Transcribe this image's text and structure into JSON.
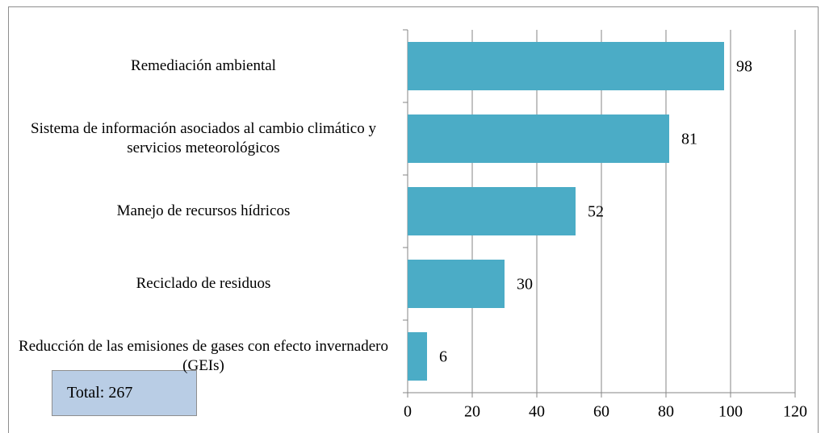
{
  "chart_data": {
    "type": "bar",
    "orientation": "horizontal",
    "categories": [
      "Remediación ambiental",
      "Sistema de información asociados al cambio climático y servicios meteorológicos",
      "Manejo de recursos hídricos",
      "Reciclado de residuos",
      "Reducción de las emisiones de gases con efecto invernadero (GEIs)"
    ],
    "values": [
      98,
      81,
      52,
      30,
      6
    ],
    "color": "#4bacc6",
    "xlim": [
      0,
      120
    ],
    "xticks": [
      0,
      20,
      40,
      60,
      80,
      100,
      120
    ],
    "grid": true,
    "annotation": "Total: 267"
  }
}
